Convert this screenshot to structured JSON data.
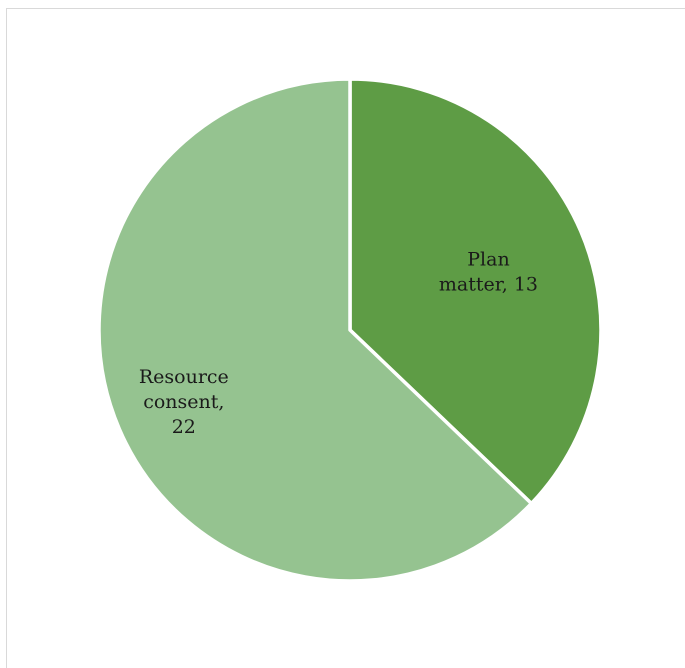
{
  "chart_data": {
    "type": "pie",
    "title": "",
    "slices": [
      {
        "label_lines": [
          "Plan",
          "matter, 13"
        ],
        "category": "Plan matter",
        "value": 13,
        "color": "#5e9c45"
      },
      {
        "label_lines": [
          "Resource",
          "consent,",
          "22"
        ],
        "category": "Resource consent",
        "value": 22,
        "color": "#95c390"
      }
    ],
    "start_angle_deg": 0,
    "direction": "clockwise",
    "slice_border_color": "#ffffff",
    "legend": "none"
  }
}
